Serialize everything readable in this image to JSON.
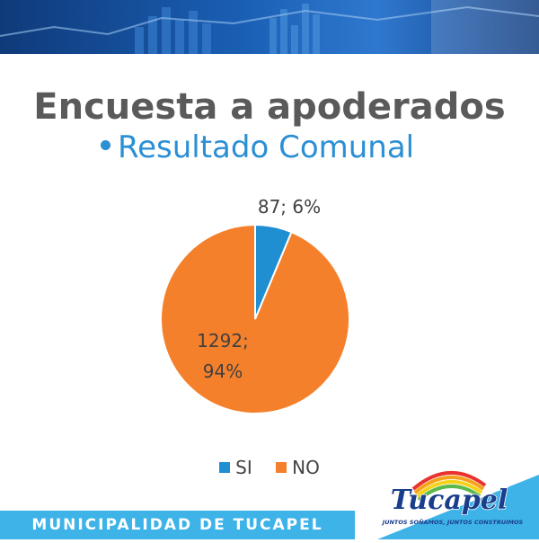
{
  "header": {
    "title": "Encuesta a apoderados",
    "subtitle": "Resultado Comunal"
  },
  "chart_data": {
    "type": "pie",
    "categories": [
      "SI",
      "NO"
    ],
    "values": [
      87,
      1292
    ],
    "percentages": [
      6,
      94
    ],
    "colors": [
      "#1f8fd1",
      "#f5802b"
    ],
    "labels": [
      "87; 6%",
      "1292;\n94%"
    ],
    "legend": "bottom",
    "title": ""
  },
  "legend": {
    "items": [
      {
        "label": "SI",
        "color": "#1f8fd1"
      },
      {
        "label": "NO",
        "color": "#f5802b"
      }
    ]
  },
  "footer": {
    "text": "MUNICIPALIDAD DE TUCAPEL"
  },
  "logo": {
    "name": "Tucapel",
    "slogan": "JUNTOS SOÑAMOS, JUNTOS CONSTRUIMOS"
  }
}
